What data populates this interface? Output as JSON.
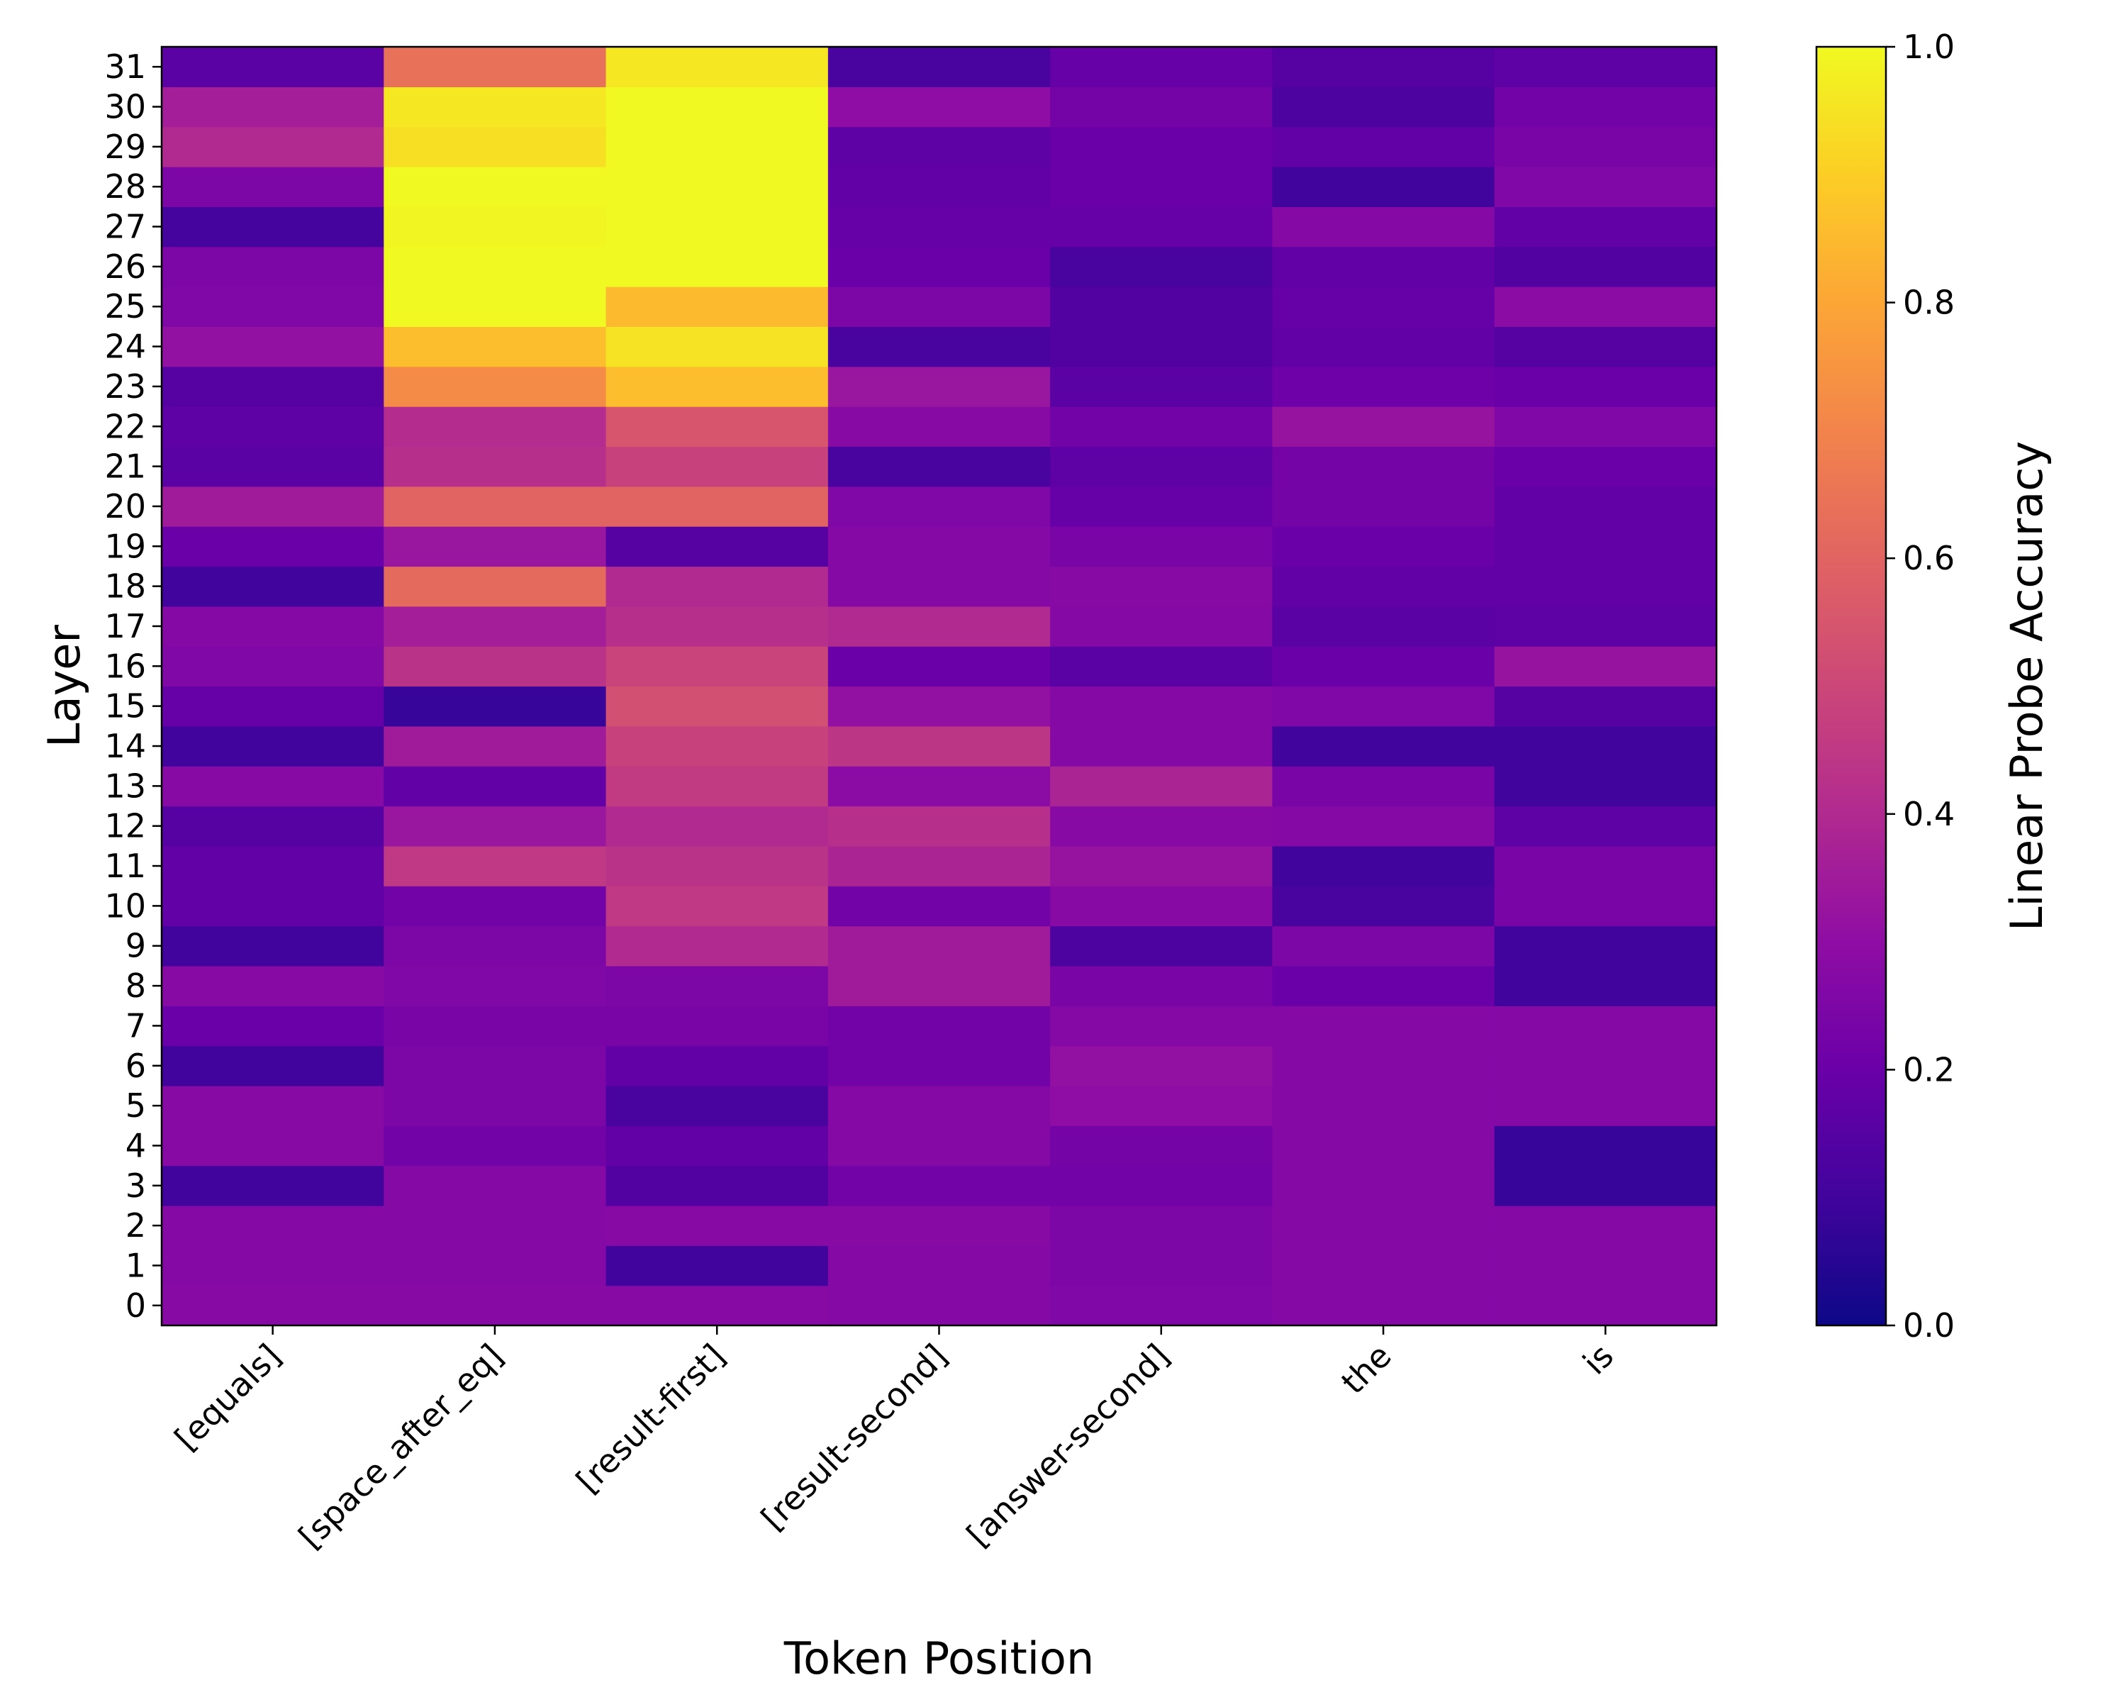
{
  "chart_data": {
    "type": "heatmap",
    "title": "",
    "xlabel": "Token Position",
    "ylabel": "Layer",
    "colorbar_label": "Linear Probe Accuracy",
    "colormap": "plasma",
    "vmin": 0.0,
    "vmax": 1.0,
    "colorbar_ticks": [
      "0.0",
      "0.2",
      "0.4",
      "0.6",
      "0.8",
      "1.0"
    ],
    "x_categories": [
      "[equals]",
      "[space_after_eq]",
      "[result-first]",
      "[result-second]",
      "[answer-second]",
      "the",
      "is"
    ],
    "y_categories": [
      "0",
      "1",
      "2",
      "3",
      "4",
      "5",
      "6",
      "7",
      "8",
      "9",
      "10",
      "11",
      "12",
      "13",
      "14",
      "15",
      "16",
      "17",
      "18",
      "19",
      "20",
      "21",
      "22",
      "23",
      "24",
      "25",
      "26",
      "27",
      "28",
      "29",
      "30",
      "31"
    ],
    "values": [
      [
        0.28,
        0.28,
        0.28,
        0.27,
        0.26,
        0.27,
        0.27
      ],
      [
        0.27,
        0.27,
        0.1,
        0.27,
        0.25,
        0.27,
        0.27
      ],
      [
        0.27,
        0.27,
        0.28,
        0.28,
        0.25,
        0.27,
        0.27
      ],
      [
        0.1,
        0.27,
        0.14,
        0.22,
        0.22,
        0.27,
        0.08
      ],
      [
        0.28,
        0.22,
        0.18,
        0.27,
        0.23,
        0.27,
        0.08
      ],
      [
        0.28,
        0.25,
        0.12,
        0.27,
        0.3,
        0.27,
        0.27
      ],
      [
        0.1,
        0.25,
        0.18,
        0.22,
        0.31,
        0.27,
        0.27
      ],
      [
        0.2,
        0.24,
        0.24,
        0.22,
        0.27,
        0.27,
        0.27
      ],
      [
        0.28,
        0.26,
        0.25,
        0.35,
        0.24,
        0.2,
        0.1
      ],
      [
        0.1,
        0.25,
        0.4,
        0.35,
        0.13,
        0.25,
        0.1
      ],
      [
        0.18,
        0.22,
        0.45,
        0.22,
        0.28,
        0.12,
        0.24
      ],
      [
        0.18,
        0.45,
        0.43,
        0.38,
        0.32,
        0.1,
        0.24
      ],
      [
        0.15,
        0.33,
        0.4,
        0.42,
        0.28,
        0.27,
        0.17
      ],
      [
        0.28,
        0.18,
        0.46,
        0.29,
        0.38,
        0.24,
        0.1
      ],
      [
        0.1,
        0.35,
        0.48,
        0.44,
        0.27,
        0.1,
        0.1
      ],
      [
        0.19,
        0.08,
        0.53,
        0.31,
        0.27,
        0.26,
        0.15
      ],
      [
        0.26,
        0.43,
        0.49,
        0.2,
        0.16,
        0.2,
        0.32
      ],
      [
        0.27,
        0.36,
        0.42,
        0.4,
        0.27,
        0.16,
        0.17
      ],
      [
        0.1,
        0.62,
        0.4,
        0.27,
        0.28,
        0.18,
        0.18
      ],
      [
        0.2,
        0.33,
        0.15,
        0.27,
        0.24,
        0.2,
        0.18
      ],
      [
        0.35,
        0.6,
        0.6,
        0.26,
        0.19,
        0.23,
        0.18
      ],
      [
        0.16,
        0.42,
        0.48,
        0.12,
        0.17,
        0.23,
        0.2
      ],
      [
        0.17,
        0.41,
        0.55,
        0.28,
        0.22,
        0.32,
        0.26
      ],
      [
        0.15,
        0.72,
        0.86,
        0.33,
        0.16,
        0.21,
        0.2
      ],
      [
        0.31,
        0.86,
        0.95,
        0.12,
        0.14,
        0.18,
        0.15
      ],
      [
        0.26,
        1.0,
        0.85,
        0.25,
        0.14,
        0.19,
        0.29
      ],
      [
        0.25,
        1.0,
        1.0,
        0.2,
        0.12,
        0.18,
        0.14
      ],
      [
        0.11,
        0.99,
        1.0,
        0.19,
        0.19,
        0.27,
        0.18
      ],
      [
        0.25,
        1.0,
        1.0,
        0.18,
        0.2,
        0.1,
        0.26
      ],
      [
        0.4,
        0.94,
        1.0,
        0.17,
        0.2,
        0.18,
        0.24
      ],
      [
        0.36,
        0.96,
        1.0,
        0.3,
        0.23,
        0.13,
        0.22
      ],
      [
        0.16,
        0.64,
        0.96,
        0.12,
        0.19,
        0.15,
        0.17
      ]
    ]
  }
}
